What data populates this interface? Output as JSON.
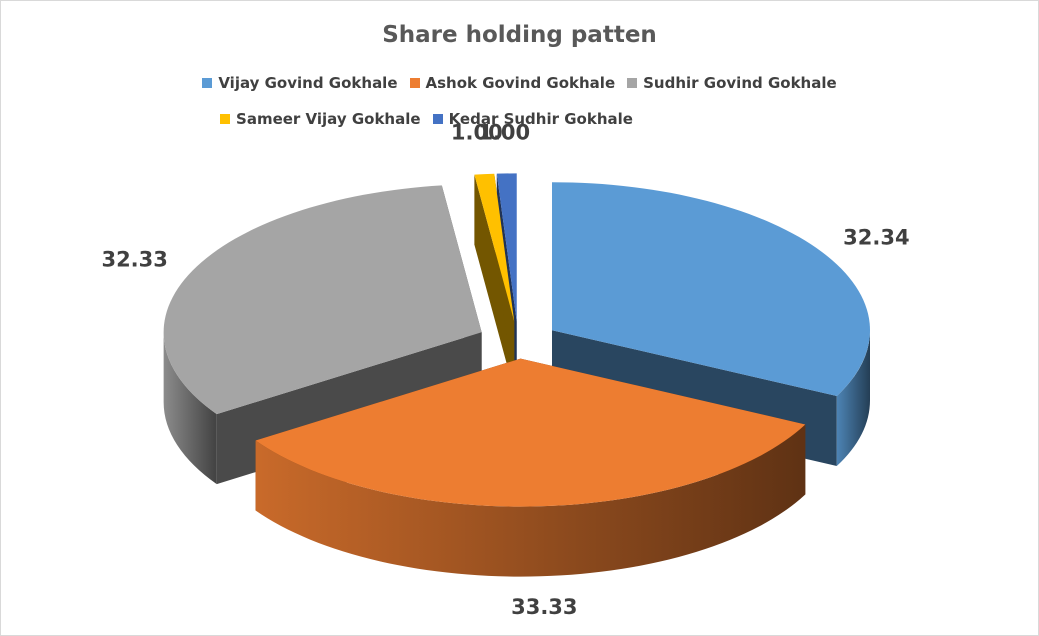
{
  "chart_data": {
    "type": "pie",
    "title": "Share holding patten",
    "legend_position": "top",
    "exploded": true,
    "three_d": true,
    "slices": [
      {
        "label": "Vijay Govind Gokhale",
        "value": 32.34,
        "value_label": "32.34",
        "color": "#5B9BD5"
      },
      {
        "label": "Ashok Govind Gokhale",
        "value": 33.33,
        "value_label": "33.33",
        "color": "#ED7D31"
      },
      {
        "label": "Sudhir Govind Gokhale",
        "value": 32.33,
        "value_label": "32.33",
        "color": "#A5A5A5"
      },
      {
        "label": "Sameer Vijay Gokhale",
        "value": 1.0,
        "value_label": "1.00",
        "color": "#FFC000"
      },
      {
        "label": "Kedar Sudhir Gokhale",
        "value": 1.0,
        "value_label": "1.00",
        "color": "#4472C4"
      }
    ]
  }
}
